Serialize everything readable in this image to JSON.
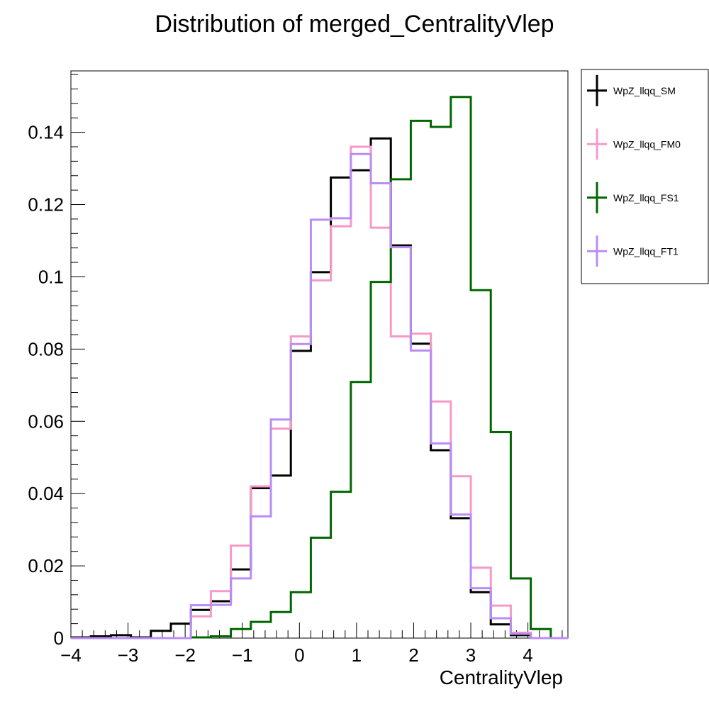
{
  "chart_data": {
    "type": "step-histogram",
    "title": "Distribution of merged_CentralityVlep",
    "xlabel": "CentralityVlep",
    "ylabel": "",
    "xlim": [
      -4.0,
      4.7
    ],
    "ylim": [
      0,
      0.157
    ],
    "xticks": [
      -4,
      -3,
      -2,
      -1,
      0,
      1,
      2,
      3,
      4
    ],
    "xtick_labels": [
      "−4",
      "−3",
      "−2",
      "−1",
      "0",
      "1",
      "2",
      "3",
      "4"
    ],
    "yticks": [
      0,
      0.02,
      0.04,
      0.06,
      0.08,
      0.1,
      0.12,
      0.14
    ],
    "ytick_labels": [
      "0",
      "0.02",
      "0.04",
      "0.06",
      "0.08",
      "0.1",
      "0.12",
      "0.14"
    ],
    "bin_edges": [
      -4.0,
      -3.65,
      -3.3,
      -2.95,
      -2.6,
      -2.25,
      -1.9,
      -1.55,
      -1.2,
      -0.85,
      -0.5,
      -0.15,
      0.2,
      0.55,
      0.9,
      1.25,
      1.6,
      1.95,
      2.3,
      2.65,
      3.0,
      3.35,
      3.7,
      4.05,
      4.4,
      4.7
    ],
    "legend_position": "outside-right",
    "series": [
      {
        "name": "WpZ_llqq_SM",
        "color": "#000000",
        "values": [
          0.0002,
          0.0005,
          0.0008,
          0.0002,
          0.002,
          0.004,
          0.0078,
          0.0102,
          0.019,
          0.0415,
          0.045,
          0.0795,
          0.1013,
          0.1275,
          0.1295,
          0.1383,
          0.1087,
          0.0815,
          0.052,
          0.0332,
          0.0127,
          0.0038,
          0.0008,
          0.0,
          0.0
        ]
      },
      {
        "name": "WpZ_llqq_FM0",
        "color": "#f799c8",
        "values": [
          0.0,
          0.0,
          0.0,
          0.0,
          0.0,
          0.0,
          0.006,
          0.013,
          0.0256,
          0.042,
          0.058,
          0.0835,
          0.099,
          0.114,
          0.136,
          0.1136,
          0.0835,
          0.0843,
          0.0655,
          0.0448,
          0.0195,
          0.009,
          0.0015,
          0.0,
          0.0
        ]
      },
      {
        "name": "WpZ_llqq_FS1",
        "color": "#006600",
        "values": [
          0.0,
          0.0,
          0.0,
          0.0,
          0.0,
          0.0,
          0.0002,
          0.0005,
          0.0025,
          0.0045,
          0.0072,
          0.0127,
          0.0278,
          0.0405,
          0.0709,
          0.0986,
          0.127,
          0.1432,
          0.1415,
          0.1498,
          0.0963,
          0.057,
          0.0165,
          0.0025,
          0.0
        ]
      },
      {
        "name": "WpZ_llqq_FT1",
        "color": "#bb8cf5",
        "values": [
          0.0,
          0.0,
          0.0,
          0.0,
          0.0,
          0.0,
          0.0091,
          0.0092,
          0.0165,
          0.0337,
          0.0605,
          0.0814,
          0.1158,
          0.1162,
          0.134,
          0.1259,
          0.1082,
          0.0796,
          0.0539,
          0.0342,
          0.0138,
          0.0055,
          0.0012,
          0.0,
          0.0
        ]
      }
    ]
  }
}
